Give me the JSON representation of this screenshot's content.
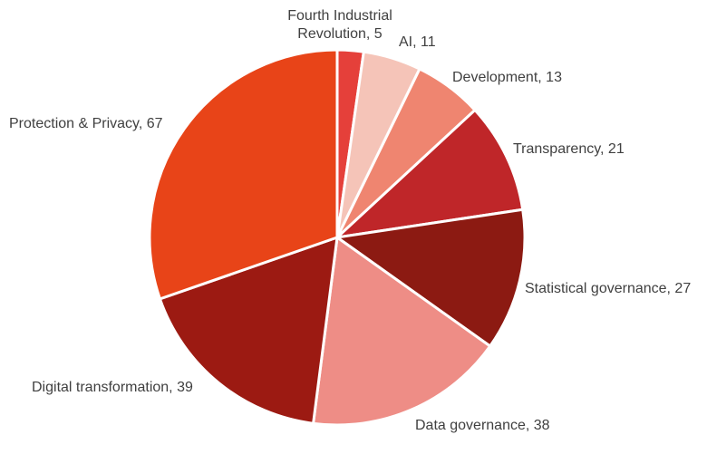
{
  "chart_data": {
    "type": "pie",
    "title": "",
    "slices": [
      {
        "label": "Fourth Industrial Revolution",
        "value": 5,
        "color": "#e5403a"
      },
      {
        "label": "AI",
        "value": 11,
        "color": "#f5c4b8"
      },
      {
        "label": "Development",
        "value": 13,
        "color": "#ef8570"
      },
      {
        "label": "Transparency",
        "value": 21,
        "color": "#bf2629"
      },
      {
        "label": "Statistical governance",
        "value": 27,
        "color": "#8c1a12"
      },
      {
        "label": "Data governance",
        "value": 38,
        "color": "#ee8d86"
      },
      {
        "label": "Digital transformation",
        "value": 39,
        "color": "#9c1a12"
      },
      {
        "label": "Protection & Privacy",
        "value": 67,
        "color": "#e84418"
      }
    ],
    "data_labels": [
      {
        "lines": [
          "Fourth Industrial",
          "Revolution, 5"
        ]
      },
      {
        "lines": [
          "AI, 11"
        ]
      },
      {
        "lines": [
          "Development, 13"
        ]
      },
      {
        "lines": [
          "Transparency, 21"
        ]
      },
      {
        "lines": [
          "Statistical governance, 27"
        ]
      },
      {
        "lines": [
          "Data governance, 38"
        ]
      },
      {
        "lines": [
          "Digital transformation, 39"
        ]
      },
      {
        "lines": [
          "Protection & Privacy, 67"
        ]
      }
    ],
    "start": "12 o'clock",
    "direction": "clockwise",
    "legend": "none"
  }
}
